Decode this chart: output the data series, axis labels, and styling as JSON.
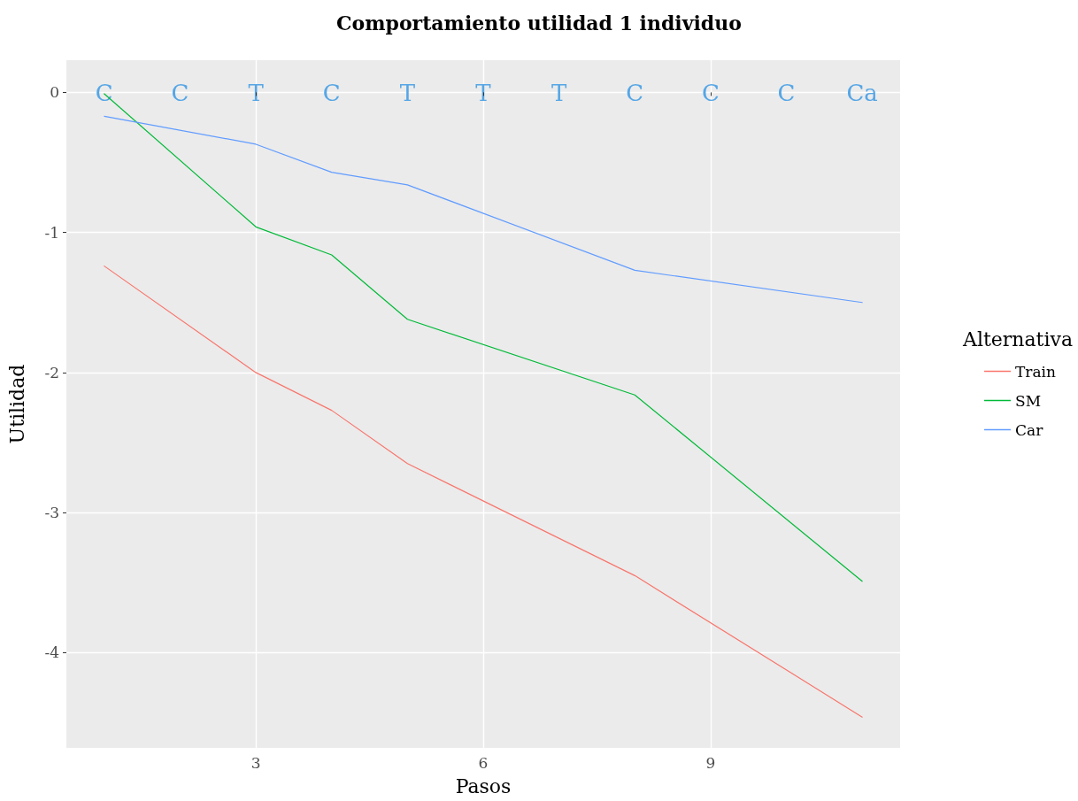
{
  "chart_data": {
    "type": "line",
    "title": "Comportamiento utilidad 1 individuo",
    "xlabel": "Pasos",
    "ylabel": "Utilidad",
    "legend_title": "Alternativa",
    "series": [
      {
        "name": "Train",
        "color": "#f8766d",
        "x": [
          1,
          3,
          4,
          5,
          8,
          11
        ],
        "values": [
          -1.24,
          -2.0,
          -2.27,
          -2.65,
          -3.45,
          -4.46
        ]
      },
      {
        "name": "SM",
        "color": "#00ba38",
        "x": [
          1,
          3,
          4,
          5,
          8,
          11
        ],
        "values": [
          -0.01,
          -0.96,
          -1.16,
          -1.62,
          -2.16,
          -3.49
        ]
      },
      {
        "name": "Car",
        "color": "#619cff",
        "x": [
          1,
          3,
          4,
          5,
          8,
          11
        ],
        "values": [
          -0.17,
          -0.37,
          -0.57,
          -0.66,
          -1.27,
          -1.5
        ]
      }
    ],
    "annotations": [
      "C",
      "C",
      "T",
      "C",
      "T",
      "T",
      "T",
      "C",
      "C",
      "C",
      "Ca"
    ],
    "xlim": [
      0.5,
      11.5
    ],
    "xticks": [
      3,
      6,
      9
    ],
    "ylim": [
      -4.68,
      0.23
    ],
    "yticks": [
      -4,
      -3,
      -2,
      -1,
      0
    ],
    "grid": true,
    "legend": "right",
    "marker": "none",
    "line_style": "solid"
  }
}
